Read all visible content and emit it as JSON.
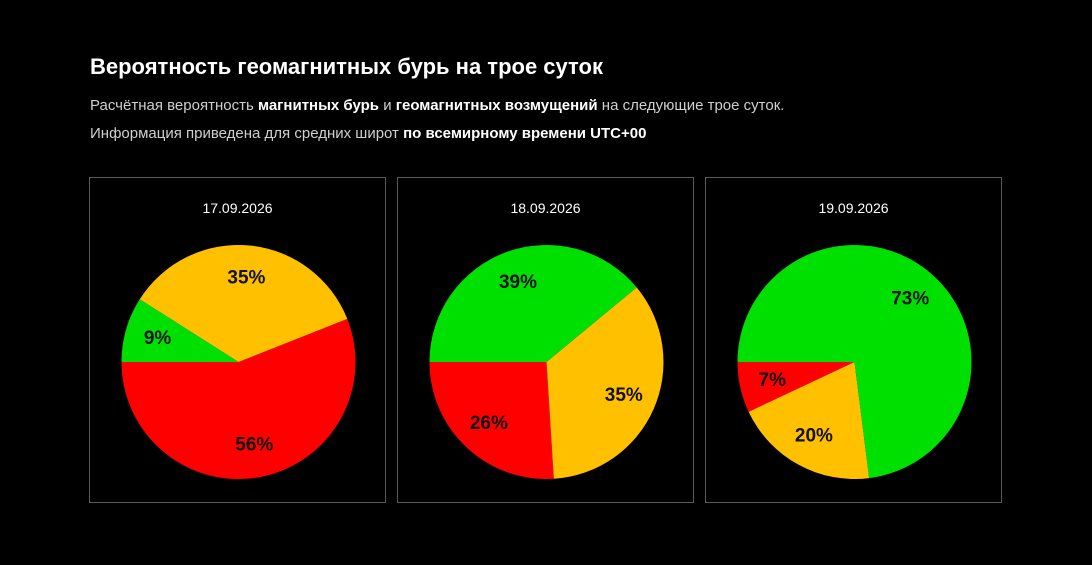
{
  "header": {
    "title": "Вероятность геомагнитных бурь на трое суток",
    "line1": {
      "t1": "Расчётная вероятность ",
      "b1": "магнитных бурь",
      "t2": " и ",
      "b2": "геомагнитных возмущений",
      "t3": " на следующие трое суток."
    },
    "line2": {
      "t1": "Информация приведена для средних широт ",
      "b1": "по всемирному времени UTC+00"
    }
  },
  "colors": {
    "storm": "#ff0000",
    "disturbance": "#ffc000",
    "calm": "#00e000",
    "panel_border": "#5a5a5a",
    "background": "#000000"
  },
  "chart_data": [
    {
      "type": "pie",
      "title": "17.09.2026",
      "slices": [
        {
          "value": 56,
          "label": "56%",
          "color": "#ff0000"
        },
        {
          "value": 35,
          "label": "35%",
          "color": "#ffc000"
        },
        {
          "value": 9,
          "label": "9%",
          "color": "#00e000"
        }
      ]
    },
    {
      "type": "pie",
      "title": "18.09.2026",
      "slices": [
        {
          "value": 26,
          "label": "26%",
          "color": "#ff0000"
        },
        {
          "value": 35,
          "label": "35%",
          "color": "#ffc000"
        },
        {
          "value": 39,
          "label": "39%",
          "color": "#00e000"
        }
      ]
    },
    {
      "type": "pie",
      "title": "19.09.2026",
      "slices": [
        {
          "value": 7,
          "label": "7%",
          "color": "#ff0000"
        },
        {
          "value": 20,
          "label": "20%",
          "color": "#ffc000"
        },
        {
          "value": 73,
          "label": "73%",
          "color": "#00e000"
        }
      ]
    }
  ]
}
